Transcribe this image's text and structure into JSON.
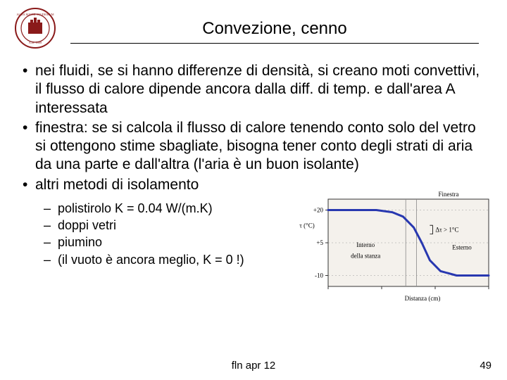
{
  "header": {
    "title": "Convezione, cenno"
  },
  "bullets": [
    "nei fluidi, se si hanno differenze di densità, si creano moti convettivi, il flusso di calore dipende ancora dalla diff. di temp. e dall'area A interessata",
    "finestra: se si calcola il flusso di calore tenendo conto solo del vetro si ottengono stime sbagliate, bisogna tener conto degli strati di aria da una parte e dall'altra (l'aria è un buon isolante)",
    "altri metodi di isolamento"
  ],
  "sub_bullets": [
    "polistirolo K = 0.04 W/(m.K)",
    "doppi vetri",
    "piumino",
    "(il vuoto è ancora meglio, K = 0 !)"
  ],
  "chart": {
    "type": "line",
    "top_labels": {
      "left_blank": "",
      "right": "Finestra"
    },
    "ylabel": "τ (°C)",
    "xlabel": "Distanza (cm)",
    "region_labels": {
      "left": "Interno della stanza",
      "right": "Esterno"
    },
    "delta_label": "Δτ > 1°C",
    "yticks": [
      -10,
      5,
      20
    ],
    "xlim": [
      0,
      60
    ],
    "ylim": [
      -15,
      25
    ],
    "curve": [
      {
        "x": 0,
        "y": 20
      },
      {
        "x": 18,
        "y": 20
      },
      {
        "x": 24,
        "y": 19
      },
      {
        "x": 28,
        "y": 17
      },
      {
        "x": 32,
        "y": 12
      },
      {
        "x": 35,
        "y": 5
      },
      {
        "x": 38,
        "y": -3
      },
      {
        "x": 42,
        "y": -8
      },
      {
        "x": 48,
        "y": -10
      },
      {
        "x": 60,
        "y": -10
      }
    ],
    "line_color": "#2838b0",
    "line_width": 3,
    "axis_color": "#333333",
    "grid_color": "#888888",
    "background_color": "#f4f1ec",
    "font_size_labels": 9,
    "font_size_axis": 9
  },
  "logo": {
    "outer_stroke": "#8a1a1a",
    "inner_fill": "#8a1a1a",
    "text_color": "#ffffff"
  },
  "footer": {
    "text": "fln apr 12",
    "page": "49"
  }
}
